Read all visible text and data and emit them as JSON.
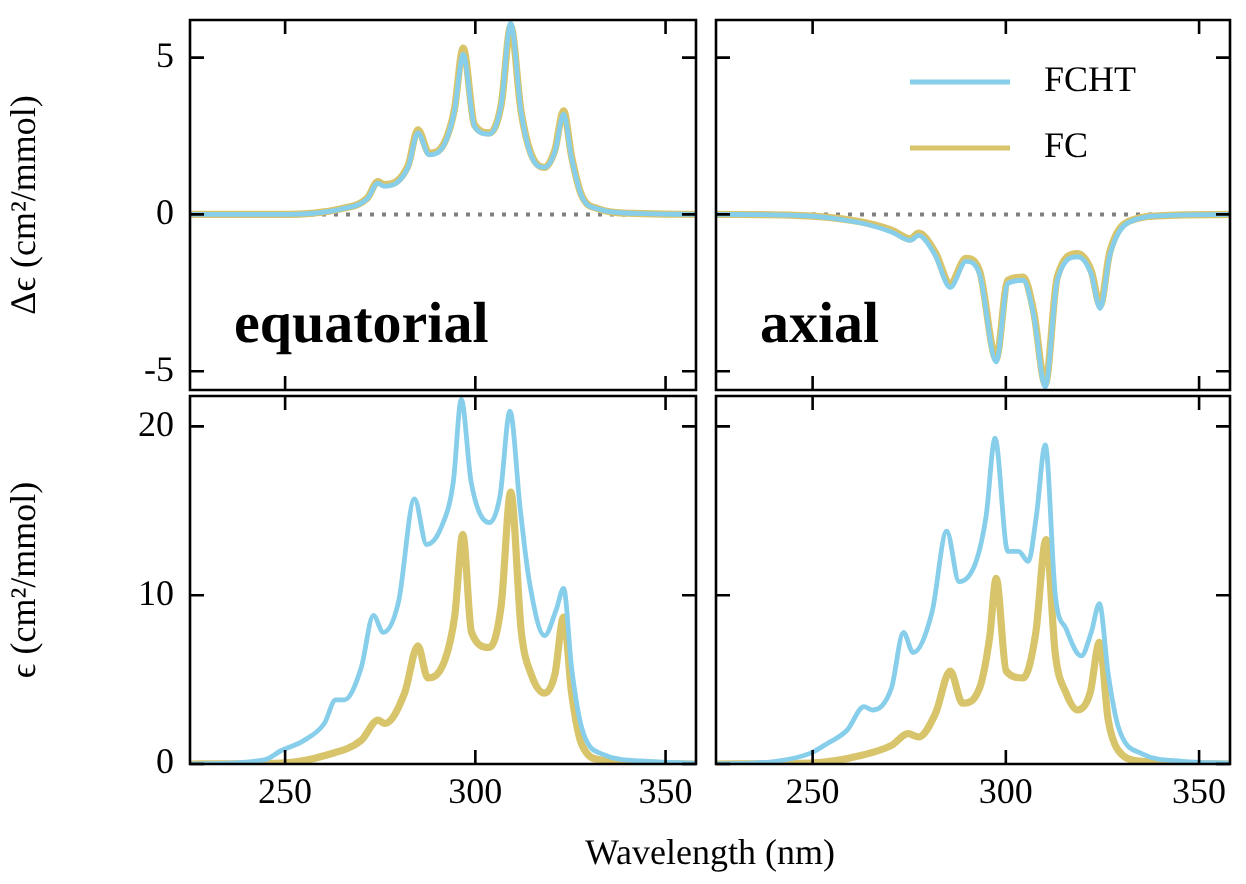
{
  "chart_data": [
    {
      "type": "line",
      "ylabel": "Δϵ (cm²/mmol)",
      "annotations": [
        "equatorial"
      ],
      "xlim": [
        225,
        358
      ],
      "xticks": [
        250,
        300,
        350
      ],
      "ylim": [
        -5.6,
        6.2
      ],
      "yticks": [
        -5,
        0,
        5
      ],
      "tick_labels": "y",
      "ref_lines": [
        {
          "axis": "y",
          "value": 0,
          "color": "#808080",
          "line_style": "dotted"
        }
      ],
      "series": [
        {
          "color": "#87ceeb",
          "x": [
            225,
            249,
            264.7,
            271.6,
            274.4,
            276,
            282.3,
            284.9,
            287.9,
            291.9,
            294.5,
            296.8,
            299.8,
            303.7,
            306.8,
            309.3,
            312,
            314.6,
            318.2,
            320.9,
            323.2,
            325.3,
            327.9,
            332.3,
            341.9,
            358
          ],
          "values": [
            0,
            0,
            0.17,
            0.5,
            1.0,
            0.9,
            1.5,
            2.6,
            1.9,
            2.25,
            3.3,
            5.1,
            2.8,
            2.56,
            3.5,
            6.1,
            3.3,
            1.9,
            1.5,
            2.0,
            3.2,
            1.8,
            0.6,
            0.17,
            0.03,
            0
          ]
        },
        {
          "color": "#d8c46a",
          "x": [
            225,
            249,
            264.7,
            271.6,
            274.4,
            276,
            282.3,
            284.9,
            287.9,
            291.9,
            294.5,
            296.8,
            299.8,
            303.7,
            306.8,
            309.3,
            312,
            314.6,
            318.2,
            320.9,
            323.2,
            325.3,
            327.9,
            332.3,
            341.9,
            358
          ],
          "values": [
            0,
            0,
            0.18,
            0.52,
            1.05,
            0.95,
            1.55,
            2.7,
            1.95,
            2.3,
            3.35,
            5.3,
            2.85,
            2.6,
            3.5,
            6.0,
            3.3,
            1.95,
            1.5,
            2.05,
            3.3,
            1.85,
            0.62,
            0.18,
            0.03,
            0
          ]
        }
      ]
    },
    {
      "type": "line",
      "annotations": [
        "axial"
      ],
      "xlim": [
        225,
        358
      ],
      "xticks": [
        250,
        300,
        350
      ],
      "ylim": [
        -5.6,
        6.2
      ],
      "yticks": [
        -5,
        0,
        5
      ],
      "tick_labels": false,
      "legend": "top right",
      "ref_lines": [
        {
          "axis": "y",
          "value": 0,
          "color": "#808080",
          "line_style": "dotted"
        }
      ],
      "series": [
        {
          "name": "FCHT",
          "color": "#87ceeb",
          "x": [
            225,
            245.8,
            261.6,
            270.4,
            275.3,
            277.4,
            281.7,
            285.6,
            289.7,
            293.2,
            297.5,
            300.5,
            304.5,
            307.2,
            310.2,
            313.3,
            318.6,
            322.1,
            324.4,
            326.9,
            331.8,
            342.3,
            358
          ],
          "values": [
            0,
            -0.03,
            -0.25,
            -0.56,
            -0.83,
            -0.67,
            -1.3,
            -2.33,
            -1.5,
            -1.9,
            -4.7,
            -2.2,
            -2.1,
            -3.2,
            -5.5,
            -2.1,
            -1.35,
            -1.9,
            -3.0,
            -1.3,
            -0.25,
            -0.03,
            0
          ]
        },
        {
          "name": "FC",
          "color": "#d8c46a",
          "x": [
            225,
            245.8,
            261.6,
            270.4,
            275.3,
            277.4,
            281.7,
            285.6,
            289.7,
            293.2,
            297.5,
            300.5,
            304.5,
            307.2,
            310.2,
            313.3,
            318.6,
            322.1,
            324.4,
            326.9,
            331.8,
            342.3,
            358
          ],
          "values": [
            0,
            -0.03,
            -0.22,
            -0.5,
            -0.78,
            -0.6,
            -1.2,
            -2.2,
            -1.4,
            -1.8,
            -4.6,
            -2.1,
            -2.0,
            -3.1,
            -5.4,
            -2.0,
            -1.25,
            -1.8,
            -2.9,
            -1.2,
            -0.22,
            -0.03,
            0
          ]
        }
      ]
    },
    {
      "type": "line",
      "ylabel": "ϵ (cm²/mmol)",
      "xlabel": "Wavelength (nm)",
      "xlim": [
        225,
        358
      ],
      "xticks": [
        250,
        300,
        350
      ],
      "ylim": [
        0,
        21.8
      ],
      "yticks": [
        0,
        10,
        20
      ],
      "series": [
        {
          "color": "#87ceeb",
          "x": [
            225,
            244.5,
            249,
            255,
            260.3,
            263.3,
            265.6,
            270,
            273.2,
            275.8,
            279.8,
            284,
            287.2,
            291,
            294.2,
            296.3,
            298.9,
            303.7,
            306.5,
            309.1,
            311.8,
            314.2,
            318.2,
            321.2,
            323.2,
            325.3,
            327.9,
            333.2,
            345.5,
            358
          ],
          "values": [
            0,
            0.24,
            0.8,
            1.4,
            2.4,
            3.8,
            3.8,
            5.7,
            8.8,
            7.8,
            9.6,
            15.7,
            13.0,
            14.0,
            16.7,
            21.6,
            16.7,
            14.3,
            15.9,
            20.9,
            15.1,
            10.8,
            7.6,
            9.1,
            10.4,
            5.7,
            2.2,
            0.6,
            0.16,
            0.05
          ]
        },
        {
          "color": "#d8c46a",
          "x": [
            225,
            249,
            261.2,
            270,
            274.4,
            276.2,
            281.4,
            284.9,
            287.5,
            291.9,
            294.6,
            296.7,
            299,
            303.7,
            306.8,
            309.3,
            312.1,
            314.7,
            318.2,
            320.9,
            323.2,
            325.3,
            327.9,
            333.2,
            358
          ],
          "values": [
            0,
            0.05,
            0.55,
            1.4,
            2.6,
            2.4,
            4.2,
            7.0,
            5.1,
            6.1,
            8.8,
            13.6,
            7.8,
            6.9,
            9.4,
            16.1,
            7.8,
            5.3,
            4.2,
            5.3,
            8.7,
            4.2,
            1.2,
            0.24,
            0
          ]
        }
      ]
    },
    {
      "type": "line",
      "xlim": [
        225,
        358
      ],
      "xticks": [
        250,
        300,
        350
      ],
      "ylim": [
        0,
        21.8
      ],
      "yticks": [
        0,
        10,
        20
      ],
      "tick_labels": "x",
      "series": [
        {
          "color": "#87ceeb",
          "x": [
            225,
            240.5,
            249.3,
            253.7,
            258.9,
            263.3,
            265.4,
            270.4,
            273.5,
            276,
            280.9,
            284.7,
            287.9,
            292.3,
            294.9,
            297.2,
            300.5,
            303.3,
            305.8,
            307.9,
            310.2,
            312.8,
            315.6,
            319.5,
            322.1,
            324.2,
            326.5,
            329.1,
            335.3,
            345.8,
            358
          ],
          "values": [
            0,
            0.16,
            0.63,
            1.2,
            2.0,
            3.4,
            3.2,
            4.5,
            7.8,
            6.6,
            9.0,
            13.8,
            10.8,
            12.0,
            14.7,
            19.3,
            12.6,
            12.6,
            12.0,
            14.7,
            18.9,
            10.0,
            8.0,
            6.4,
            7.8,
            9.5,
            5.3,
            2.2,
            0.6,
            0.16,
            0.05
          ]
        },
        {
          "color": "#d8c46a",
          "x": [
            225,
            249.3,
            263.3,
            270.4,
            274.7,
            277.4,
            281.8,
            285.6,
            288.8,
            293.2,
            295.8,
            297.5,
            300.1,
            304.5,
            307.7,
            310.4,
            312.8,
            315.6,
            318.6,
            321.8,
            324.2,
            326.5,
            329.1,
            335.3,
            358
          ],
          "values": [
            0,
            0.05,
            0.55,
            1.1,
            1.8,
            1.6,
            3.0,
            5.5,
            3.6,
            4.5,
            7.5,
            11.0,
            5.5,
            5.1,
            7.7,
            13.3,
            6.5,
            4.2,
            3.2,
            4.2,
            7.2,
            2.6,
            0.8,
            0.16,
            0
          ]
        }
      ]
    }
  ]
}
